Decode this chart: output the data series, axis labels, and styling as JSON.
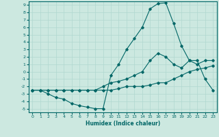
{
  "xlabel": "Humidex (Indice chaleur)",
  "xlim": [
    -0.5,
    23.5
  ],
  "ylim": [
    -5.5,
    9.5
  ],
  "xticks": [
    0,
    1,
    2,
    3,
    4,
    5,
    6,
    7,
    8,
    9,
    10,
    11,
    12,
    13,
    14,
    15,
    16,
    17,
    18,
    19,
    20,
    21,
    22,
    23
  ],
  "yticks": [
    -5,
    -4,
    -3,
    -2,
    -1,
    0,
    1,
    2,
    3,
    4,
    5,
    6,
    7,
    8,
    9
  ],
  "background_color": "#cce8e0",
  "grid_color": "#b0d8d0",
  "line_color": "#006666",
  "line_max_x": [
    0,
    1,
    2,
    3,
    4,
    5,
    6,
    7,
    8,
    9,
    10,
    11,
    12,
    13,
    14,
    15,
    16,
    17,
    18,
    19,
    20,
    21,
    22,
    23
  ],
  "line_max_y": [
    -2.5,
    -2.5,
    -3.0,
    -3.5,
    -3.7,
    -4.3,
    -4.6,
    -4.8,
    -5.0,
    -5.0,
    -0.5,
    1.0,
    3.0,
    4.5,
    6.0,
    8.5,
    9.2,
    9.3,
    6.5,
    3.5,
    1.5,
    1.5,
    -1.0,
    -2.5
  ],
  "line_mid_x": [
    0,
    1,
    2,
    3,
    4,
    5,
    6,
    7,
    8,
    9,
    10,
    11,
    12,
    13,
    14,
    15,
    16,
    17,
    18,
    19,
    20,
    21,
    22,
    23
  ],
  "line_mid_y": [
    -2.5,
    -2.5,
    -2.5,
    -2.5,
    -2.5,
    -2.5,
    -2.5,
    -2.5,
    -2.5,
    -2.0,
    -1.5,
    -1.3,
    -1.0,
    -0.5,
    0.0,
    1.5,
    2.5,
    2.0,
    1.0,
    0.5,
    1.5,
    1.0,
    1.5,
    1.5
  ],
  "line_low_x": [
    0,
    1,
    2,
    3,
    4,
    5,
    6,
    7,
    8,
    9,
    10,
    11,
    12,
    13,
    14,
    15,
    16,
    17,
    18,
    19,
    20,
    21,
    22,
    23
  ],
  "line_low_y": [
    -2.5,
    -2.5,
    -2.5,
    -2.5,
    -2.5,
    -2.5,
    -2.5,
    -2.5,
    -2.5,
    -2.5,
    -2.5,
    -2.3,
    -2.0,
    -2.0,
    -2.0,
    -1.8,
    -1.5,
    -1.5,
    -1.0,
    -0.5,
    0.0,
    0.3,
    0.5,
    0.8
  ]
}
